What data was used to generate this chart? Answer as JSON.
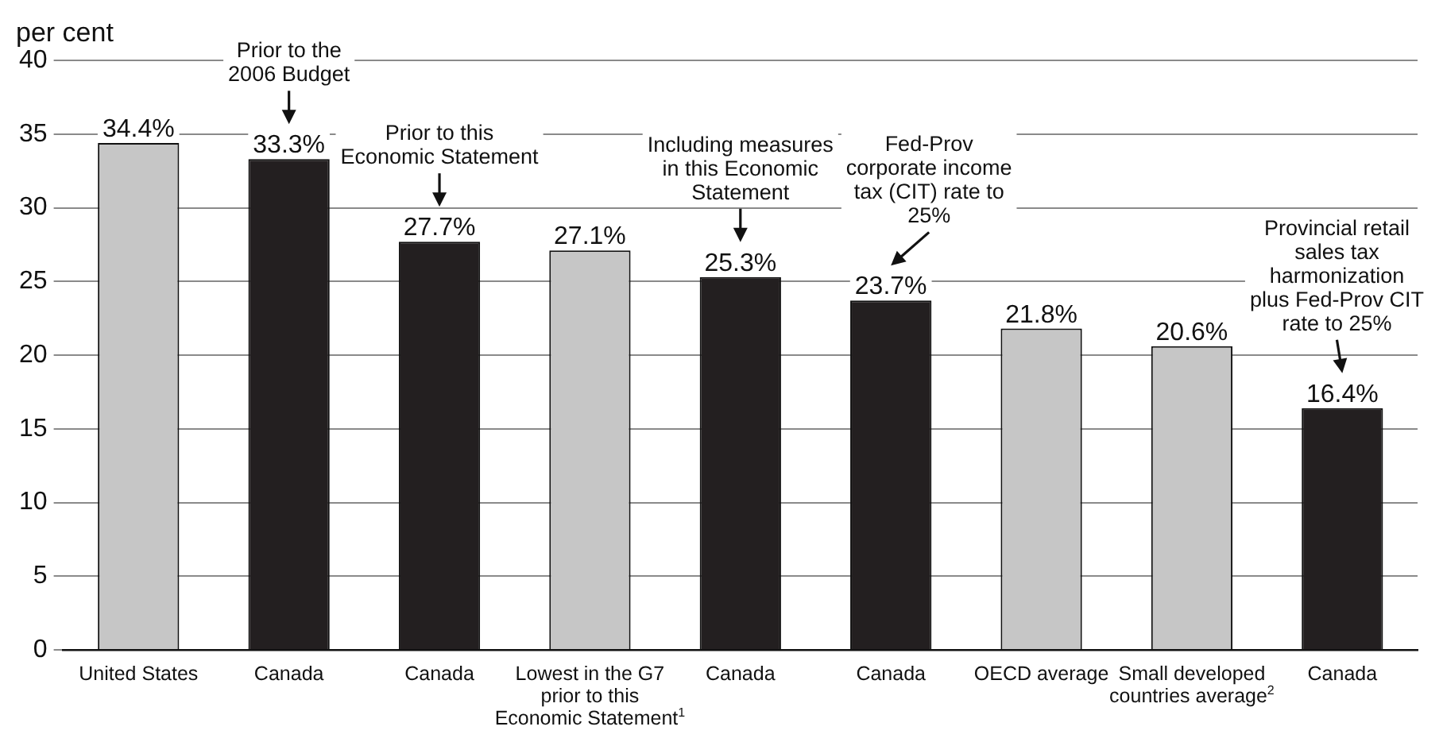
{
  "chart_data": {
    "type": "bar",
    "ylabel": "per cent",
    "categories": [
      "United States",
      "Canada",
      "Canada",
      "Lowest in the G7 prior to this Economic Statement$^{1}$",
      "Canada",
      "Canada",
      "OECD average",
      "Small developed countries average$^{2}$",
      "Canada"
    ],
    "values": [
      34.4,
      33.3,
      27.7,
      27.1,
      25.3,
      23.7,
      21.8,
      20.6,
      16.4
    ],
    "colors": [
      "#c6c6c6",
      "#231f20",
      "#231f20",
      "#c6c6c6",
      "#231f20",
      "#231f20",
      "#c6c6c6",
      "#c6c6c6",
      "#231f20"
    ],
    "value_labels": [
      "34.4%",
      "33.3%",
      "27.7%",
      "27.1%",
      "25.3%",
      "23.7%",
      "21.8%",
      "20.6%",
      "16.4%"
    ],
    "ylim": [
      0,
      40
    ],
    "yticks": [
      0,
      5,
      10,
      15,
      20,
      25,
      30,
      35,
      40
    ],
    "grid": "y",
    "legend": false,
    "annotations": [
      "Prior to the 2006 Budget",
      "Prior to this Economic Statement",
      "Including measures in this Economic Statement",
      "Fed-Prov corporate income tax (CIT) rate to 25%",
      "Provincial retail sales tax harmonization plus Fed-Prov CIT rate to 25%"
    ]
  }
}
